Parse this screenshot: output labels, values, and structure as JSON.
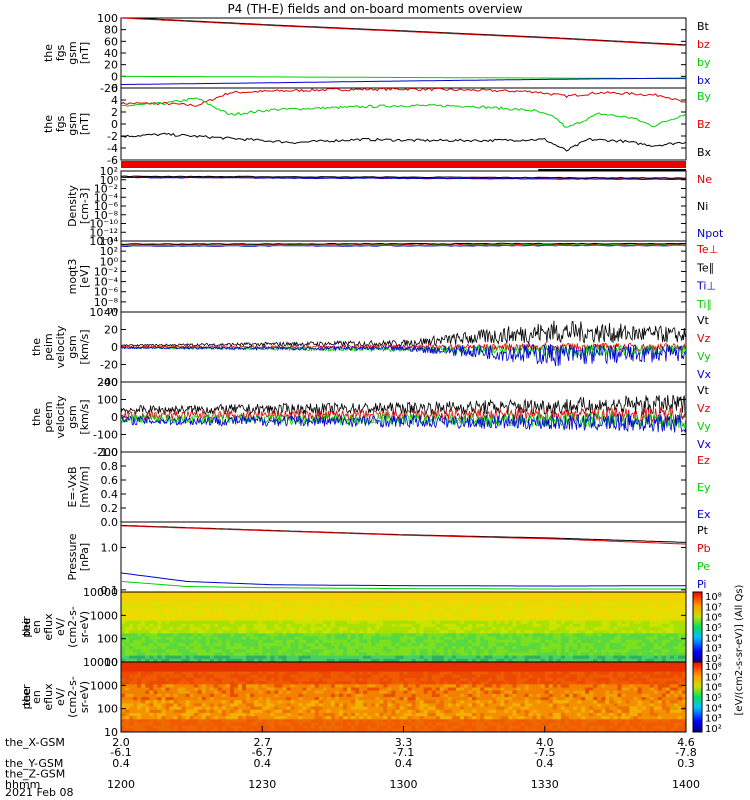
{
  "title": "P4 (TH-E) fields and on-board moments overview",
  "colors": {
    "black": "#000000",
    "red": "#e00000",
    "green": "#00d000",
    "blue": "#0000d0"
  },
  "panels": [
    {
      "id": "fgs",
      "ylabel": [
        "the",
        "fgs",
        "gsm",
        "[nT]"
      ],
      "type": "line",
      "yticks": [
        "100",
        "80",
        "60",
        "40",
        "20",
        "0",
        "-20"
      ],
      "ylim": [
        -20,
        100
      ],
      "legend": [
        {
          "label": "Bt",
          "color": "black"
        },
        {
          "label": "bz",
          "color": "red"
        },
        {
          "label": "by",
          "color": "green"
        },
        {
          "label": "bx",
          "color": "blue"
        }
      ],
      "series": [
        {
          "name": "Bt",
          "color": "black",
          "x": [
            2.0,
            2.7,
            3.3,
            4.0,
            4.6
          ],
          "y": [
            101,
            88,
            78,
            66,
            54
          ]
        },
        {
          "name": "bz",
          "color": "red",
          "x": [
            2.0,
            2.7,
            3.3,
            4.0,
            4.6
          ],
          "y": [
            100,
            87,
            77,
            65,
            53
          ]
        },
        {
          "name": "by",
          "color": "green",
          "x": [
            2.0,
            2.7,
            3.3,
            4.0,
            4.6
          ],
          "y": [
            0,
            -1,
            -2,
            -3,
            -4
          ]
        },
        {
          "name": "bx",
          "color": "blue",
          "x": [
            2.0,
            2.7,
            3.3,
            4.0,
            4.6
          ],
          "y": [
            -14,
            -11,
            -8,
            -5,
            -3
          ]
        }
      ]
    },
    {
      "id": "fgs_dsl",
      "ylabel": [
        "the",
        "fgs",
        "gsm",
        "[nT]"
      ],
      "type": "line",
      "yticks": [
        "6",
        "4",
        "2",
        "0",
        "-2",
        "-4",
        "-6"
      ],
      "ylim": [
        -7,
        7
      ],
      "legend": [
        {
          "label": "By",
          "color": "green"
        },
        {
          "label": "Bz",
          "color": "red"
        },
        {
          "label": "Bx",
          "color": "black"
        }
      ],
      "series": [
        {
          "name": "Bz",
          "color": "red",
          "x": [
            2.0,
            2.2,
            2.35,
            2.5,
            2.7,
            3.0,
            3.3,
            3.6,
            3.9,
            4.05,
            4.2,
            4.35,
            4.5,
            4.6
          ],
          "y": [
            4.0,
            4.0,
            3.6,
            6.1,
            6.4,
            6.7,
            6.8,
            6.6,
            6.3,
            5.4,
            6.1,
            5.9,
            5.5,
            4.0
          ]
        },
        {
          "name": "By",
          "color": "green",
          "x": [
            2.0,
            2.2,
            2.35,
            2.5,
            2.7,
            3.0,
            3.3,
            3.6,
            3.9,
            4.0,
            4.05,
            4.2,
            4.35,
            4.45,
            4.6
          ],
          "y": [
            3.5,
            4.0,
            5.0,
            1.8,
            2.8,
            3.2,
            3.6,
            3.5,
            2.6,
            1.2,
            -0.8,
            2.0,
            1.2,
            -0.4,
            2.0
          ]
        },
        {
          "name": "Bx",
          "color": "black",
          "x": [
            2.0,
            2.2,
            2.5,
            2.8,
            3.1,
            3.4,
            3.7,
            3.95,
            4.05,
            4.15,
            4.3,
            4.45,
            4.6
          ],
          "y": [
            -2.4,
            -2.0,
            -2.8,
            -3.6,
            -3.0,
            -3.2,
            -3.2,
            -3.0,
            -5.2,
            -3.0,
            -3.3,
            -4.2,
            -3.5
          ]
        }
      ]
    },
    {
      "id": "density",
      "ylabel": [
        "Density",
        "[cm-3]"
      ],
      "type": "logline",
      "yticks": [
        "10²",
        "10⁰",
        "10⁻²",
        "10⁻⁴",
        "10⁻⁶",
        "10⁻⁸",
        "10⁻¹⁰",
        "10⁻¹²",
        "10⁻¹⁴"
      ],
      "ylim_exp": [
        -14,
        2
      ],
      "legend": [
        {
          "label": "Ne",
          "color": "red"
        },
        {
          "label": "Ni",
          "color": "black"
        },
        {
          "label": "Npot",
          "color": "blue"
        }
      ],
      "series": [
        {
          "name": "Ne",
          "color": "red",
          "x": [
            2.0,
            4.6
          ],
          "y_exp": [
            0.6,
            0.2
          ]
        },
        {
          "name": "Ni",
          "color": "black",
          "x": [
            2.0,
            4.6
          ],
          "y_exp": [
            0.8,
            0.4
          ]
        },
        {
          "name": "Npot",
          "color": "blue",
          "x": [
            2.0,
            4.6
          ],
          "y_exp": [
            0.5,
            0.1
          ]
        }
      ]
    },
    {
      "id": "temp",
      "ylabel": [
        "moqt3",
        "[eV]"
      ],
      "type": "logline",
      "yticks": [
        "10⁴",
        "10²",
        "10⁰",
        "10⁻²",
        "10⁻⁴",
        "10⁻⁶",
        "10⁻⁸",
        "10⁻¹⁰"
      ],
      "ylim_exp": [
        -10,
        4
      ],
      "legend": [
        {
          "label": "Te⊥",
          "color": "red"
        },
        {
          "label": "Te∥",
          "color": "black"
        },
        {
          "label": "Ti⊥",
          "color": "blue"
        },
        {
          "label": "Ti∥",
          "color": "green"
        }
      ],
      "series": [
        {
          "name": "Te⊥",
          "color": "red",
          "x": [
            2.0,
            4.6
          ],
          "y_exp": [
            3.2,
            3.3
          ]
        },
        {
          "name": "Te∥",
          "color": "black",
          "x": [
            2.0,
            4.6
          ],
          "y_exp": [
            3.4,
            3.5
          ]
        },
        {
          "name": "Ti⊥",
          "color": "blue",
          "x": [
            2.0,
            4.6
          ],
          "y_exp": [
            3.0,
            3.1
          ]
        },
        {
          "name": "Ti∥",
          "color": "green",
          "x": [
            2.0,
            4.6
          ],
          "y_exp": [
            3.1,
            3.2
          ]
        }
      ]
    },
    {
      "id": "peim",
      "ylabel": [
        "the",
        "peim",
        "velocity",
        "gsm",
        "[km/s]"
      ],
      "type": "noise",
      "yticks": [
        "40",
        "20",
        "0",
        "-20",
        "-40"
      ],
      "ylim": [
        -45,
        45
      ],
      "legend": [
        {
          "label": "Vt",
          "color": "black"
        },
        {
          "label": "Vz",
          "color": "red"
        },
        {
          "label": "Vy",
          "color": "green"
        },
        {
          "label": "Vx",
          "color": "blue"
        }
      ],
      "series": [
        {
          "name": "Vt",
          "color": "black",
          "x": [
            2.0,
            3.3,
            4.0,
            4.6
          ],
          "level": [
            2,
            5,
            20,
            15
          ],
          "amp": [
            1,
            4,
            15,
            10
          ]
        },
        {
          "name": "Vz",
          "color": "red",
          "x": [
            2.0,
            3.3,
            4.0,
            4.6
          ],
          "level": [
            0,
            0,
            0,
            0
          ],
          "amp": [
            1,
            3,
            5,
            5
          ]
        },
        {
          "name": "Vy",
          "color": "green",
          "x": [
            2.0,
            3.3,
            4.0,
            4.6
          ],
          "level": [
            -1,
            -3,
            -5,
            -4
          ],
          "amp": [
            1,
            3,
            8,
            6
          ]
        },
        {
          "name": "Vx",
          "color": "blue",
          "x": [
            2.0,
            3.3,
            4.0,
            4.6
          ],
          "level": [
            -1,
            -2,
            -10,
            -8
          ],
          "amp": [
            1,
            3,
            15,
            10
          ]
        }
      ]
    },
    {
      "id": "peem",
      "ylabel": [
        "the",
        "peem",
        "velocity",
        "gsm",
        "[km/s]"
      ],
      "type": "noise",
      "yticks": [
        "200",
        "100",
        "0",
        "-100",
        "-200"
      ],
      "ylim": [
        -200,
        200
      ],
      "legend": [
        {
          "label": "Vt",
          "color": "black"
        },
        {
          "label": "Vz",
          "color": "red"
        },
        {
          "label": "Vy",
          "color": "green"
        },
        {
          "label": "Vx",
          "color": "blue"
        }
      ],
      "series": [
        {
          "name": "Vt",
          "color": "black",
          "x": [
            2.0,
            3.3,
            4.6
          ],
          "level": [
            40,
            50,
            70
          ],
          "amp": [
            25,
            35,
            60
          ]
        },
        {
          "name": "Vz",
          "color": "red",
          "x": [
            2.0,
            3.3,
            4.6
          ],
          "level": [
            10,
            10,
            15
          ],
          "amp": [
            25,
            30,
            45
          ]
        },
        {
          "name": "Vy",
          "color": "green",
          "x": [
            2.0,
            3.3,
            4.6
          ],
          "level": [
            -10,
            -15,
            -20
          ],
          "amp": [
            25,
            35,
            45
          ]
        },
        {
          "name": "Vx",
          "color": "blue",
          "x": [
            2.0,
            3.3,
            4.6
          ],
          "level": [
            -20,
            -25,
            -35
          ],
          "amp": [
            25,
            35,
            55
          ]
        }
      ]
    },
    {
      "id": "efield",
      "ylabel": [
        "E=-VxB",
        "[mV/m]"
      ],
      "type": "empty",
      "yticks": [
        "1.0",
        "0.8",
        "0.6",
        "0.4",
        "0.2",
        "0.0"
      ],
      "ylim": [
        0,
        1
      ],
      "legend": [
        {
          "label": "Ez",
          "color": "red"
        },
        {
          "label": "Ey",
          "color": "green"
        },
        {
          "label": "Ex",
          "color": "blue"
        }
      ],
      "series": []
    },
    {
      "id": "pressure",
      "ylabel": [
        "Pressure",
        "[nPa]"
      ],
      "type": "logline",
      "yticks": [
        "1.0",
        "0.1"
      ],
      "ylim_exp": [
        -1.05,
        0.6
      ],
      "ytick_exp": [
        0,
        -1
      ],
      "legend": [
        {
          "label": "Pt",
          "color": "black"
        },
        {
          "label": "Pb",
          "color": "red"
        },
        {
          "label": "Pe",
          "color": "green"
        },
        {
          "label": "Pi",
          "color": "blue"
        }
      ],
      "series": [
        {
          "name": "Pt",
          "color": "black",
          "x": [
            2.0,
            2.7,
            3.3,
            4.0,
            4.6
          ],
          "y_exp": [
            0.52,
            0.4,
            0.3,
            0.22,
            0.12
          ]
        },
        {
          "name": "Pb",
          "color": "red",
          "x": [
            2.0,
            2.7,
            3.3,
            4.0,
            4.6
          ],
          "y_exp": [
            0.51,
            0.39,
            0.29,
            0.2,
            0.08
          ]
        },
        {
          "name": "Pe",
          "color": "green",
          "x": [
            2.0,
            2.3,
            2.7,
            3.3,
            4.0,
            4.6
          ],
          "y_exp": [
            -0.8,
            -0.92,
            -0.95,
            -0.97,
            -0.98,
            -0.98
          ]
        },
        {
          "name": "Pi",
          "color": "blue",
          "x": [
            2.0,
            2.3,
            2.7,
            3.3,
            4.0,
            4.6
          ],
          "y_exp": [
            -0.6,
            -0.8,
            -0.88,
            -0.9,
            -0.91,
            -0.9
          ]
        }
      ]
    },
    {
      "id": "peir",
      "ylabel": [
        "the",
        "peir",
        "en",
        "eflux",
        "eV/",
        "(cm2-s-",
        "sr-eV)"
      ],
      "type": "spectro",
      "yticks": [
        "10000",
        "1000",
        "100",
        "10"
      ],
      "ylim_exp": [
        0.8,
        4.3
      ]
    },
    {
      "id": "peer",
      "ylabel": [
        "the",
        "peer",
        "en",
        "eflux",
        "eV/",
        "(cm2-s-",
        "sr-eV)"
      ],
      "type": "spectro",
      "yticks": [
        "10000",
        "1000",
        "100",
        "10"
      ],
      "ylim_exp": [
        0.8,
        4.3
      ]
    }
  ],
  "colorbar": {
    "ticks": [
      "10⁸",
      "10⁷",
      "10⁶",
      "10⁵",
      "10⁴",
      "10³",
      "10²"
    ],
    "label": "[eV/(cm2-s-sr-eV)] (All Qs)"
  },
  "x_axis": {
    "ticks": [
      "2.0",
      "2.7",
      "3.3",
      "4.0",
      "4.6"
    ],
    "rows": [
      {
        "label": "the_X-GSM",
        "values": [
          "-6.1",
          "-6.7",
          "-7.1",
          "-7.5",
          "-7.8"
        ]
      },
      {
        "label": "the_Y-GSM",
        "values": [
          "0.4",
          "0.4",
          "0.4",
          "0.4",
          "0.3"
        ]
      },
      {
        "label": "the_Z-GSM",
        "values": [
          "",
          "",
          "",
          "",
          ""
        ]
      },
      {
        "label": "hhmm",
        "values": [
          "1200",
          "1230",
          "1300",
          "1330",
          "1400"
        ]
      }
    ],
    "date": "2021 Feb 08"
  }
}
